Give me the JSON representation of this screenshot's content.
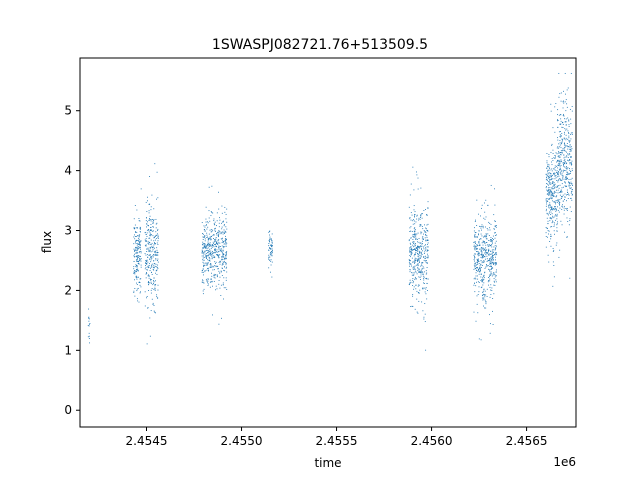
{
  "chart_data": {
    "type": "scatter",
    "title": "1SWASPJ082721.76+513509.5",
    "xlabel": "time",
    "ylabel": "flux",
    "x_offset_label": "1e6",
    "x_ticks": [
      2.4545,
      2.455,
      2.4555,
      2.456,
      2.4565
    ],
    "x_tick_labels": [
      "2.4545",
      "2.4550",
      "2.4555",
      "2.4560",
      "2.4565"
    ],
    "y_ticks": [
      0,
      1,
      2,
      3,
      4,
      5
    ],
    "y_tick_labels": [
      "0",
      "1",
      "2",
      "3",
      "4",
      "5"
    ],
    "xlim": [
      2.45415,
      2.45676
    ],
    "ylim": [
      -0.28,
      5.88
    ],
    "grid": false,
    "legend": "none",
    "marker_color": "#1f77b4",
    "series": [
      {
        "clusters": [
          {
            "x_range": [
              2.45419,
              2.4542
            ],
            "y_center": 1.45,
            "y_spread": 0.2,
            "n": 14
          },
          {
            "x_range": [
              2.45443,
              2.45447
            ],
            "y_center": 2.6,
            "y_spread": 0.3,
            "n": 180
          },
          {
            "x_range": [
              2.45449,
              2.45456
            ],
            "y_center": 2.6,
            "y_spread": 0.4,
            "n": 300
          },
          {
            "x_range": [
              2.45479,
              2.45492
            ],
            "y_center": 2.65,
            "y_spread": 0.3,
            "n": 500
          },
          {
            "x_range": [
              2.45514,
              2.45516
            ],
            "y_center": 2.65,
            "y_spread": 0.2,
            "n": 60
          },
          {
            "x_range": [
              2.45588,
              2.45598
            ],
            "y_center": 2.6,
            "y_spread": 0.4,
            "n": 420
          },
          {
            "x_range": [
              2.45622,
              2.45634
            ],
            "y_center": 2.55,
            "y_spread": 0.35,
            "n": 480
          },
          {
            "x_range": [
              2.4566,
              2.45666
            ],
            "y_center": 3.6,
            "y_spread": 0.4,
            "n": 300
          },
          {
            "x_range": [
              2.45666,
              2.45674
            ],
            "y_center": 4.1,
            "y_spread": 0.5,
            "n": 400
          }
        ]
      }
    ]
  }
}
